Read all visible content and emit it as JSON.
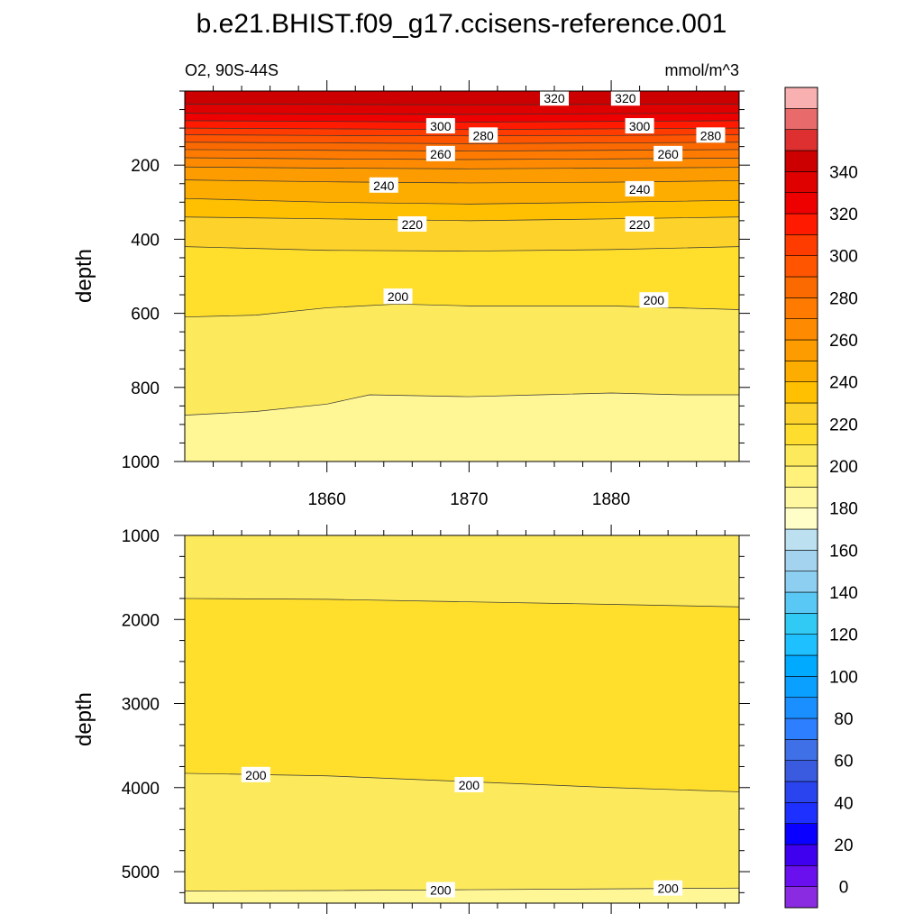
{
  "title": "b.e21.BHIST.f09_g17.ccisens-reference.001",
  "subtitle_left": "O2, 90S-44S",
  "subtitle_right": "mmol/m^3",
  "chart_data": [
    {
      "type": "contour",
      "panel": "upper",
      "x_range": [
        1850,
        1889
      ],
      "y_range": [
        0,
        1000
      ],
      "y_reversed": true,
      "xlabel": "",
      "ylabel": "depth",
      "xticks": [
        1860,
        1870,
        1880
      ],
      "yticks": [
        200,
        400,
        600,
        800,
        1000
      ],
      "contours": [
        {
          "level": 340,
          "fill": "#cc0000",
          "x": [
            1850,
            1860,
            1870,
            1880,
            1889
          ],
          "y": [
            35,
            36,
            37,
            36,
            35
          ]
        },
        {
          "level": 330,
          "fill": "#df0000",
          "x": [
            1850,
            1860,
            1870,
            1880,
            1889
          ],
          "y": [
            60,
            62,
            63,
            61,
            60
          ]
        },
        {
          "level": 320,
          "fill": "#ee0000",
          "x": [
            1850,
            1860,
            1870,
            1880,
            1889
          ],
          "y": [
            80,
            82,
            84,
            82,
            80
          ]
        },
        {
          "level": 310,
          "fill": "#ff1a00",
          "x": [
            1850,
            1860,
            1870,
            1880,
            1889
          ],
          "y": [
            100,
            102,
            104,
            102,
            100
          ]
        },
        {
          "level": 300,
          "fill": "#ff3c00",
          "x": [
            1850,
            1860,
            1870,
            1880,
            1889
          ],
          "y": [
            118,
            120,
            121,
            120,
            118
          ]
        },
        {
          "level": 290,
          "fill": "#ff5500",
          "x": [
            1850,
            1860,
            1870,
            1880,
            1889
          ],
          "y": [
            138,
            140,
            142,
            140,
            138
          ]
        },
        {
          "level": 280,
          "fill": "#fa6a00",
          "x": [
            1850,
            1860,
            1870,
            1880,
            1889
          ],
          "y": [
            158,
            160,
            162,
            160,
            158
          ]
        },
        {
          "level": 270,
          "fill": "#ff7a00",
          "x": [
            1850,
            1860,
            1870,
            1880,
            1889
          ],
          "y": [
            180,
            183,
            185,
            183,
            181
          ]
        },
        {
          "level": 260,
          "fill": "#fd8a00",
          "x": [
            1850,
            1860,
            1870,
            1880,
            1889
          ],
          "y": [
            205,
            208,
            210,
            208,
            206
          ]
        },
        {
          "level": 250,
          "fill": "#fd9c00",
          "x": [
            1850,
            1860,
            1870,
            1880,
            1889
          ],
          "y": [
            240,
            245,
            248,
            246,
            242
          ]
        },
        {
          "level": 240,
          "fill": "#fdac00",
          "x": [
            1850,
            1860,
            1870,
            1880,
            1889
          ],
          "y": [
            290,
            300,
            305,
            300,
            295
          ]
        },
        {
          "level": 230,
          "fill": "#fec000",
          "x": [
            1850,
            1860,
            1870,
            1880,
            1889
          ],
          "y": [
            340,
            345,
            350,
            345,
            340
          ]
        },
        {
          "level": 220,
          "fill": "#fdd22a",
          "x": [
            1850,
            1860,
            1870,
            1880,
            1889
          ],
          "y": [
            420,
            430,
            432,
            428,
            420
          ]
        },
        {
          "level": 210,
          "fill": "#ffdf2c",
          "x": [
            1850,
            1855,
            1860,
            1865,
            1870,
            1880,
            1889
          ],
          "y": [
            610,
            605,
            585,
            575,
            580,
            580,
            590
          ]
        },
        {
          "level": 200,
          "fill": "#fde95c",
          "x": [
            1850,
            1855,
            1860,
            1863,
            1870,
            1875,
            1880,
            1885,
            1889
          ],
          "y": [
            875,
            865,
            845,
            820,
            825,
            820,
            815,
            820,
            820
          ]
        },
        {
          "level": 190,
          "fill": "#fff696"
        }
      ],
      "labels": [
        {
          "text": "320",
          "x": 1876,
          "y": 20
        },
        {
          "text": "320",
          "x": 1881,
          "y": 20
        },
        {
          "text": "300",
          "x": 1868,
          "y": 95
        },
        {
          "text": "300",
          "x": 1882,
          "y": 95
        },
        {
          "text": "280",
          "x": 1871,
          "y": 120
        },
        {
          "text": "280",
          "x": 1887,
          "y": 120
        },
        {
          "text": "260",
          "x": 1868,
          "y": 170
        },
        {
          "text": "260",
          "x": 1884,
          "y": 170
        },
        {
          "text": "240",
          "x": 1864,
          "y": 255
        },
        {
          "text": "240",
          "x": 1882,
          "y": 265
        },
        {
          "text": "220",
          "x": 1866,
          "y": 360
        },
        {
          "text": "220",
          "x": 1882,
          "y": 360
        },
        {
          "text": "200",
          "x": 1865,
          "y": 555
        },
        {
          "text": "200",
          "x": 1883,
          "y": 565
        }
      ]
    },
    {
      "type": "contour",
      "panel": "lower",
      "x_range": [
        1850,
        1889
      ],
      "y_range": [
        1000,
        5375
      ],
      "y_reversed": true,
      "xlabel": "",
      "ylabel": "depth",
      "yticks": [
        1000,
        2000,
        3000,
        4000,
        5000
      ],
      "contours": [
        {
          "level": 190,
          "fill": "#fde95c",
          "x": [
            1850,
            1860,
            1870,
            1880,
            1889
          ],
          "y": [
            1750,
            1760,
            1790,
            1820,
            1850
          ]
        },
        {
          "level": 200,
          "fill": "#ffdf2c",
          "x": [
            1850,
            1860,
            1870,
            1880,
            1889
          ],
          "y": [
            3830,
            3860,
            3930,
            4000,
            4050
          ]
        },
        {
          "level": 200,
          "fill": "#fde95c",
          "x": [
            1850,
            1860,
            1870,
            1880,
            1889
          ],
          "y": [
            5230,
            5225,
            5215,
            5205,
            5195
          ]
        },
        {
          "level": 180,
          "fill": "#fff696"
        }
      ],
      "labels": [
        {
          "text": "200",
          "x": 1855,
          "y": 3850
        },
        {
          "text": "200",
          "x": 1870,
          "y": 3970
        },
        {
          "text": "200",
          "x": 1868,
          "y": 5220
        },
        {
          "text": "200",
          "x": 1884,
          "y": 5200
        }
      ]
    }
  ],
  "colorbar": {
    "labels": [
      "0",
      "20",
      "40",
      "60",
      "80",
      "100",
      "120",
      "140",
      "160",
      "180",
      "200",
      "220",
      "240",
      "260",
      "280",
      "300",
      "320",
      "340"
    ],
    "colors": [
      "#8a2be2",
      "#6a10ef",
      "#4000f0",
      "#0a00ff",
      "#1e30ff",
      "#2a45f0",
      "#3a5ae0",
      "#3f70e8",
      "#2e7fff",
      "#1a8fff",
      "#0aa0ff",
      "#00aaff",
      "#1ec0ff",
      "#30caf5",
      "#5ac8f5",
      "#8ccff0",
      "#a3d3ee",
      "#bce0f0",
      "#fffec8",
      "#fff8a0",
      "#fff17a",
      "#fde95c",
      "#fedd2e",
      "#fdd22a",
      "#fec000",
      "#fdac00",
      "#fd9c00",
      "#fd8a00",
      "#ff7a00",
      "#fa6a00",
      "#ff5500",
      "#ff3c00",
      "#ff1a00",
      "#ee0000",
      "#df0000",
      "#cc0000",
      "#de3030",
      "#e86a6a",
      "#f8b0b0"
    ]
  }
}
